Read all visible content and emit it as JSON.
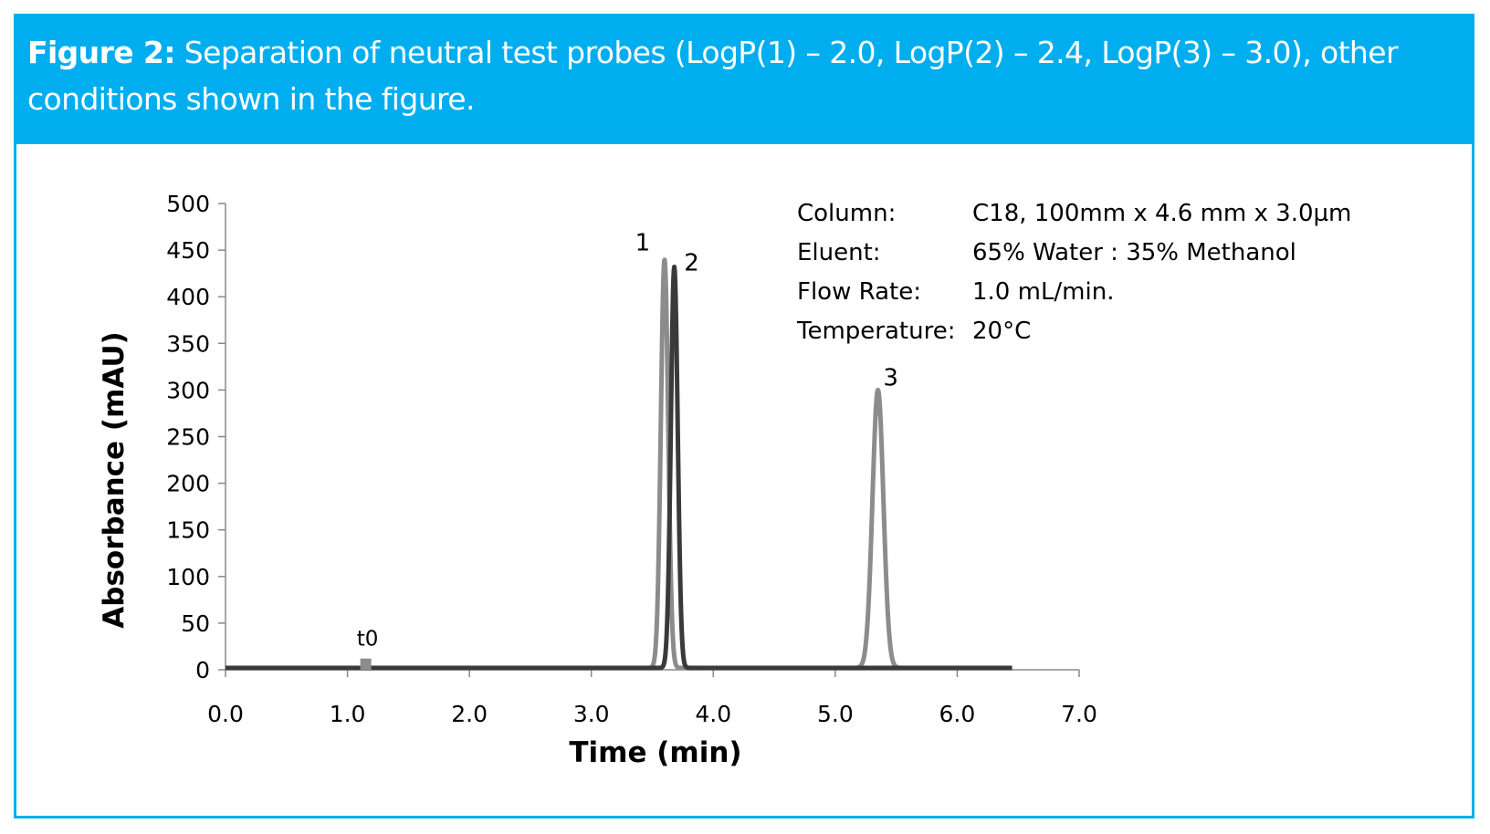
{
  "figure": {
    "label": "Figure 2:",
    "caption": " Separation of neutral test probes (LogP(1) – 2.0, LogP(2) – 2.4, LogP(3) – 3.0), other conditions shown in the figure."
  },
  "conditions": [
    {
      "key": "Column:",
      "value": "C18, 100mm x 4.6 mm x 3.0µm"
    },
    {
      "key": "Eluent:",
      "value": "65% Water : 35% Methanol"
    },
    {
      "key": "Flow Rate:",
      "value": "1.0 mL/min."
    },
    {
      "key": "Temperature:",
      "value": "20°C"
    }
  ],
  "colors": {
    "header_bg": "#00aeef",
    "header_text": "#ffffff",
    "trace_light": "#8c8c8c",
    "trace_dark": "#3a3a3a",
    "axis": "#888888"
  },
  "chart_data": {
    "type": "line",
    "title": "",
    "xlabel": "Time (min)",
    "ylabel": "Absorbance (mAU)",
    "xlim": [
      0,
      7
    ],
    "ylim": [
      0,
      500
    ],
    "x_ticks": [
      0,
      1,
      2,
      3,
      4,
      5,
      6,
      7
    ],
    "x_tick_labels": [
      "0.0",
      "1.0",
      "2.0",
      "3.0",
      "4.0",
      "5.0",
      "6.0",
      "7.0"
    ],
    "y_ticks": [
      0,
      50,
      100,
      150,
      200,
      250,
      300,
      350,
      400,
      450,
      500
    ],
    "y_tick_labels": [
      "0",
      "50",
      "100",
      "150",
      "200",
      "250",
      "300",
      "350",
      "400",
      "450",
      "500"
    ],
    "grid": false,
    "legend": "none",
    "baseline": {
      "start": 0,
      "end": 6.45,
      "value": 2
    },
    "t0_marker": {
      "label": "t0",
      "time": 1.15,
      "height": 12
    },
    "series": [
      {
        "color": "#8c8c8c",
        "peaks": [
          {
            "label": "1",
            "time": 3.6,
            "height": 438,
            "width": 0.03
          },
          {
            "label": "3",
            "time": 5.35,
            "height": 298,
            "width": 0.045
          }
        ]
      },
      {
        "color": "#3a3a3a",
        "peaks": [
          {
            "label": "2",
            "time": 3.68,
            "height": 430,
            "width": 0.028
          }
        ]
      }
    ]
  }
}
